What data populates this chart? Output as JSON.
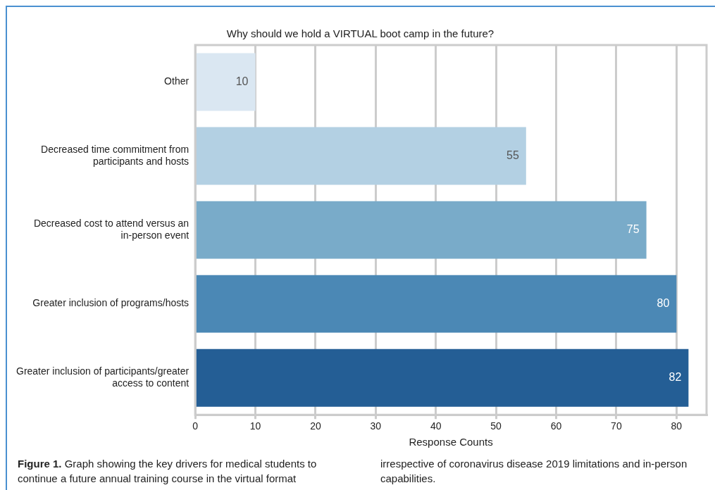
{
  "chart_data": {
    "type": "bar",
    "orientation": "horizontal",
    "title": "Why should we hold a VIRTUAL boot camp in the future?",
    "xlabel": "Response Counts",
    "categories": [
      "Other",
      "Decreased time commitment from participants and hosts",
      "Decreased cost to attend versus an in-person event",
      "Greater inclusion of programs/hosts",
      "Greater inclusion of participants/greater access to content"
    ],
    "values": [
      10,
      55,
      75,
      80,
      82
    ],
    "colors": [
      "#dae7f2",
      "#b3d0e3",
      "#79abc9",
      "#4b88b5",
      "#245e95"
    ],
    "xlim": [
      0,
      85
    ],
    "xticks": [
      0,
      10,
      20,
      30,
      40,
      50,
      60,
      70,
      80
    ],
    "grid": "x",
    "legend": false,
    "data_labels": true,
    "annotations": [
      "Figure 1. Graph showing the key drivers for medical students to continue a future annual training course in the virtual format irrespective of coronavirus disease 2019 limitations and in-person capabilities."
    ]
  }
}
